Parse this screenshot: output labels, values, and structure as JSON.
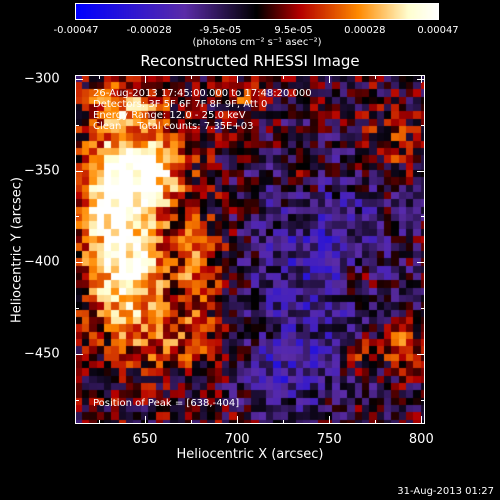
{
  "chart_data": {
    "type": "heatmap",
    "title": "Reconstructed RHESSI Image",
    "xlabel": "Heliocentric X (arcsec)",
    "ylabel": "Heliocentric Y (arcsec)",
    "xlim": [
      612,
      802
    ],
    "ylim": [
      -488,
      -298
    ],
    "x_ticks": [
      "650",
      "700",
      "750",
      "800"
    ],
    "y_ticks": [
      "-300",
      "-350",
      "-400",
      "-450"
    ],
    "colorbar": {
      "ticks": [
        "-0.00047",
        "-0.00028",
        "-9.5e-05",
        "9.5e-05",
        "0.00028",
        "0.00047"
      ],
      "range": [
        -0.00047,
        0.00047
      ],
      "unit": "(photons cm⁻² s⁻¹ asec⁻²)",
      "colors": [
        "#0000ff",
        "#5b2ca8",
        "#000000",
        "#b50000",
        "#ff8a00",
        "#ffffd0",
        "#ffffff"
      ]
    },
    "annotations": {
      "time": "26-Aug-2013 17:45:00.000 to 17:48:20.000",
      "detectors": "Detectors: 3F 5F 6F 7F 8F 9F, Att 0",
      "energy": "Energy Range: 12.0 - 25.0 keV",
      "method": "Clean     Total counts: 7.35E+03",
      "peak": "Position of Peak = [638,-404]"
    },
    "peak": {
      "x": 638,
      "y": -404
    },
    "hot_sources": [
      {
        "x": 640,
        "y": -400,
        "amp": 1.0,
        "sx": 14,
        "sy": 28
      },
      {
        "x": 650,
        "y": -350,
        "amp": 0.95,
        "sx": 14,
        "sy": 16
      },
      {
        "x": 625,
        "y": -360,
        "amp": 0.6,
        "sx": 8,
        "sy": 20
      },
      {
        "x": 680,
        "y": -405,
        "amp": 0.45,
        "sx": 10,
        "sy": 25
      },
      {
        "x": 640,
        "y": -315,
        "amp": 0.55,
        "sx": 14,
        "sy": 10
      },
      {
        "x": 665,
        "y": -445,
        "amp": 0.35,
        "sx": 15,
        "sy": 10
      },
      {
        "x": 765,
        "y": -412,
        "amp": 0.5,
        "sx": 6,
        "sy": 6
      },
      {
        "x": 765,
        "y": -450,
        "amp": 0.5,
        "sx": 8,
        "sy": 7
      },
      {
        "x": 790,
        "y": -445,
        "amp": 0.45,
        "sx": 8,
        "sy": 8
      },
      {
        "x": 783,
        "y": -335,
        "amp": 0.35,
        "sx": 10,
        "sy": 10
      },
      {
        "x": 735,
        "y": -355,
        "amp": 0.35,
        "sx": 6,
        "sy": 6
      },
      {
        "x": 700,
        "y": -310,
        "amp": 0.3,
        "sx": 8,
        "sy": 6
      }
    ],
    "cold_sources": [
      {
        "x": 745,
        "y": -400,
        "amp": 0.55,
        "sx": 30,
        "sy": 40
      },
      {
        "x": 730,
        "y": -460,
        "amp": 0.45,
        "sx": 20,
        "sy": 15
      }
    ]
  },
  "footer": {
    "timestamp": "31-Aug-2013 01:27"
  }
}
